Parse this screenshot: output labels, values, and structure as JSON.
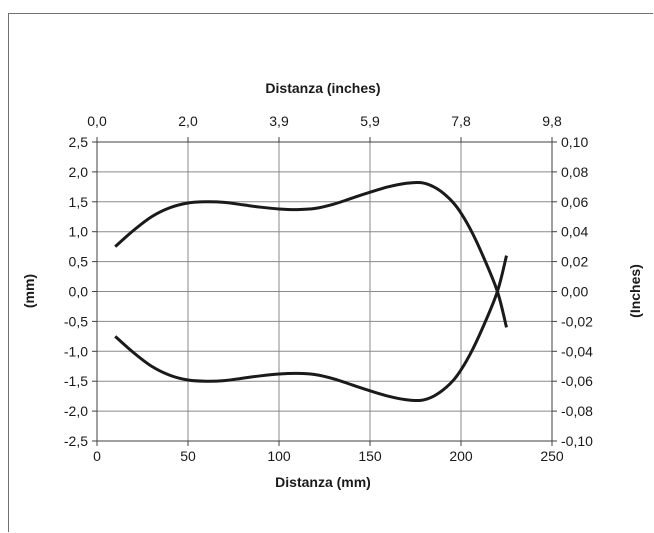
{
  "chart_data": {
    "type": "line",
    "title": "",
    "xlabel": "Distanza (mm)",
    "x2label": "Distanza (inches)",
    "ylabel": "(mm)",
    "y2label": "(Inches)",
    "xlim": [
      0,
      250
    ],
    "ylim": [
      -2.5,
      2.5
    ],
    "xticks": [
      "0",
      "50",
      "100",
      "150",
      "200",
      "250"
    ],
    "x2ticks": [
      "0,0",
      "2,0",
      "3,9",
      "5,9",
      "7,8",
      "9,8"
    ],
    "yticks": [
      "2,5",
      "2,0",
      "1,5",
      "1,0",
      "0,5",
      "0,0",
      "-0,5",
      "-1,0",
      "-1,5",
      "-2,0",
      "-2,5"
    ],
    "y2ticks": [
      "0,10",
      "0,08",
      "0,06",
      "0,04",
      "0,02",
      "0,00",
      "-0,02",
      "-0,04",
      "-0,06",
      "-0,08",
      "-0,10"
    ],
    "grid": true,
    "line_color": "#1a1a1a",
    "series": [
      {
        "x": [
          10,
          20,
          30,
          40,
          50,
          60,
          70,
          80,
          90,
          100,
          110,
          120,
          130,
          140,
          150,
          160,
          170,
          178,
          185,
          192,
          198,
          205,
          212,
          220,
          225
        ],
        "values": [
          0.75,
          1.02,
          1.25,
          1.4,
          1.48,
          1.5,
          1.49,
          1.45,
          1.41,
          1.38,
          1.37,
          1.39,
          1.46,
          1.56,
          1.66,
          1.75,
          1.81,
          1.82,
          1.75,
          1.6,
          1.4,
          1.05,
          0.6,
          0.0,
          -0.6
        ]
      },
      {
        "x": [
          10,
          20,
          30,
          40,
          50,
          60,
          70,
          80,
          90,
          100,
          110,
          120,
          130,
          140,
          150,
          160,
          170,
          178,
          185,
          192,
          198,
          205,
          212,
          220,
          225
        ],
        "values": [
          -0.75,
          -1.02,
          -1.25,
          -1.4,
          -1.48,
          -1.5,
          -1.49,
          -1.45,
          -1.41,
          -1.38,
          -1.37,
          -1.39,
          -1.46,
          -1.56,
          -1.66,
          -1.75,
          -1.81,
          -1.82,
          -1.75,
          -1.6,
          -1.4,
          -1.05,
          -0.6,
          0.0,
          0.6
        ]
      }
    ]
  }
}
